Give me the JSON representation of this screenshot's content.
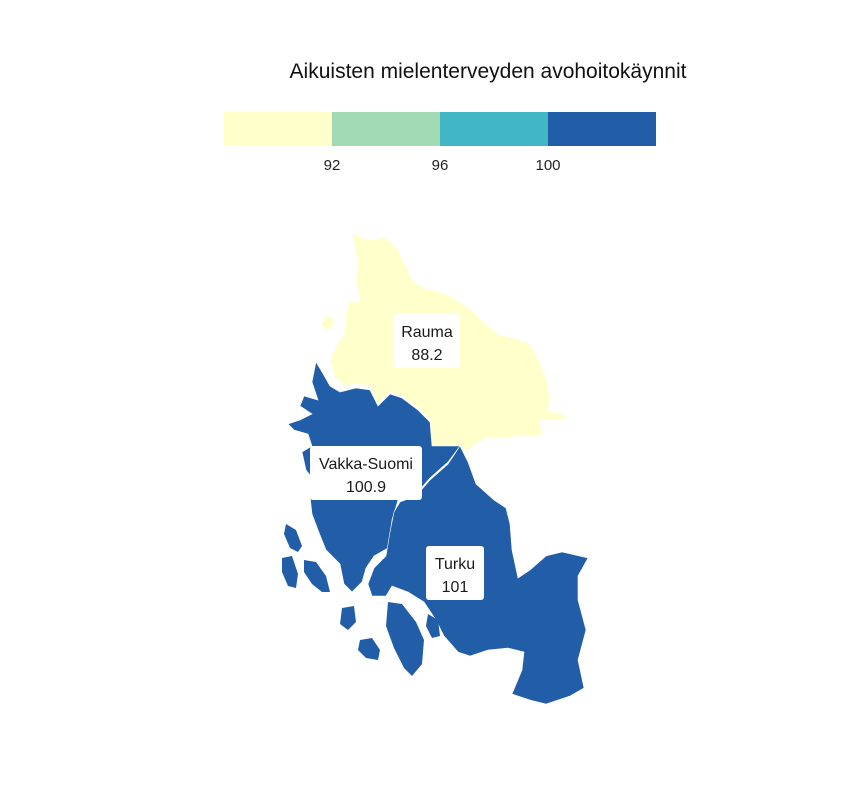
{
  "title": "Aikuisten mielenterveyden avohoitokäynnit",
  "legend": {
    "bins": [
      {
        "color": "#ffffcc"
      },
      {
        "color": "#a1dab4"
      },
      {
        "color": "#41b6c4"
      },
      {
        "color": "#225ea8"
      }
    ],
    "breaks": [
      "92",
      "96",
      "100"
    ]
  },
  "regions": [
    {
      "name": "Rauma",
      "value": "88.2",
      "color": "#ffffcc"
    },
    {
      "name": "Vakka-Suomi",
      "value": "100.9",
      "color": "#225ea8"
    },
    {
      "name": "Turku",
      "value": "101",
      "color": "#225ea8"
    }
  ]
}
